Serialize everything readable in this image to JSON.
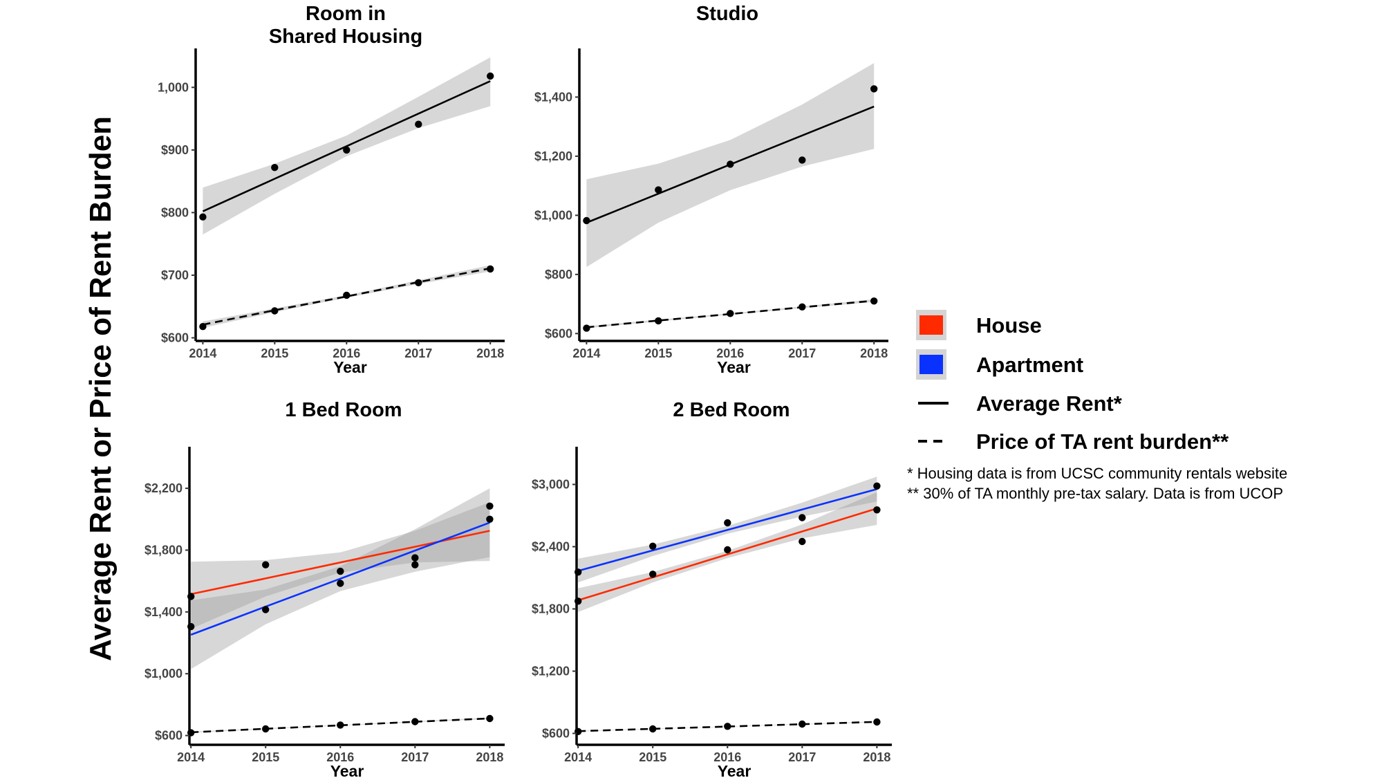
{
  "y_axis_label": "Average Rent or Price of Rent Burden",
  "x_axis_label": "Year",
  "legend": {
    "items": [
      {
        "label": "House",
        "kind": "fill",
        "color": "#ff2a00"
      },
      {
        "label": "Apartment",
        "kind": "fill",
        "color": "#0a32ff"
      },
      {
        "label": "Average Rent*",
        "kind": "solid",
        "color": "#000000"
      },
      {
        "label": "Price of TA rent burden**",
        "kind": "dashed",
        "color": "#000000"
      }
    ],
    "notes": [
      "* Housing data is from UCSC community rentals website",
      "** 30% of TA monthly pre-tax salary. Data is from UCOP"
    ]
  },
  "chart_data": [
    {
      "type": "scatter",
      "title": [
        "Room in",
        "Shared Housing"
      ],
      "xlabel": "Year",
      "x": [
        2014,
        2015,
        2016,
        2017,
        2018
      ],
      "xlim": [
        2013.9,
        2018.2
      ],
      "ylim": [
        595,
        1060
      ],
      "yticks": [
        600,
        700,
        800,
        900,
        1000
      ],
      "ytick_labels": [
        "$600",
        "$700",
        "$800",
        "$900",
        "1,000"
      ],
      "series": [
        {
          "type": "Average Rent",
          "color": "#000000",
          "dashed": false,
          "values": [
            793,
            872,
            900,
            941,
            1018
          ],
          "fit": [
            802,
            854,
            906,
            958,
            1010
          ],
          "ci_lo": [
            765,
            830,
            890,
            935,
            970
          ],
          "ci_hi": [
            840,
            878,
            923,
            985,
            1048
          ]
        },
        {
          "type": "Price of TA rent burden",
          "color": "#000000",
          "dashed": true,
          "values": [
            618,
            643,
            668,
            688,
            710
          ],
          "fit": [
            621,
            644,
            666,
            689,
            711
          ],
          "ci_lo": [
            616,
            641,
            664,
            686,
            706
          ],
          "ci_hi": [
            626,
            647,
            668,
            692,
            716
          ]
        }
      ]
    },
    {
      "type": "scatter",
      "title": [
        "Studio"
      ],
      "xlabel": "Year",
      "x": [
        2014,
        2015,
        2016,
        2017,
        2018
      ],
      "xlim": [
        2013.9,
        2018.2
      ],
      "ylim": [
        575,
        1560
      ],
      "yticks": [
        600,
        800,
        1000,
        1200,
        1400
      ],
      "ytick_labels": [
        "$600",
        "$800",
        "$1,000",
        "$1,200",
        "$1,400"
      ],
      "series": [
        {
          "type": "Average Rent",
          "color": "#000000",
          "dashed": false,
          "values": [
            982,
            1086,
            1173,
            1187,
            1428
          ],
          "fit": [
            975,
            1073,
            1172,
            1270,
            1368
          ],
          "ci_lo": [
            825,
            975,
            1085,
            1165,
            1225
          ],
          "ci_hi": [
            1122,
            1175,
            1255,
            1375,
            1515
          ]
        },
        {
          "type": "Price of TA rent burden",
          "color": "#000000",
          "dashed": true,
          "values": [
            618,
            643,
            668,
            690,
            710
          ],
          "fit": [
            621,
            644,
            666,
            689,
            711
          ],
          "ci_lo": [
            618,
            641,
            664,
            686,
            707
          ],
          "ci_hi": [
            625,
            647,
            668,
            692,
            716
          ]
        }
      ]
    },
    {
      "type": "scatter",
      "title": [
        "1 Bed Room"
      ],
      "xlabel": "Year",
      "x": [
        2014,
        2015,
        2016,
        2017,
        2018
      ],
      "xlim": [
        2013.98,
        2018.2
      ],
      "ylim": [
        540,
        2460
      ],
      "yticks": [
        600,
        1000,
        1400,
        1800,
        2200
      ],
      "ytick_labels": [
        "$600",
        "$1,000",
        "$1,400",
        "$1,800",
        "$2,200"
      ],
      "series": [
        {
          "type": "House",
          "color": "#ff2a00",
          "dashed": false,
          "values": [
            1500,
            1705,
            1663,
            1750,
            2085
          ],
          "fit": [
            1515,
            1617,
            1720,
            1822,
            1925
          ],
          "ci_lo": [
            1290,
            1500,
            1655,
            1720,
            1730
          ],
          "ci_hi": [
            1725,
            1735,
            1785,
            1925,
            2110
          ]
        },
        {
          "type": "Apartment",
          "color": "#0a32ff",
          "dashed": false,
          "values": [
            1305,
            1415,
            1585,
            1705,
            2000
          ],
          "fit": [
            1252,
            1434,
            1615,
            1797,
            1978
          ],
          "ci_lo": [
            1030,
            1320,
            1535,
            1660,
            1755
          ],
          "ci_hi": [
            1475,
            1545,
            1695,
            1935,
            2200
          ]
        },
        {
          "type": "Price of TA rent burden",
          "color": "#000000",
          "dashed": true,
          "values": [
            618,
            643,
            668,
            690,
            710
          ],
          "fit": [
            621,
            644,
            666,
            689,
            711
          ],
          "ci_lo": [
            618,
            641,
            664,
            686,
            707
          ],
          "ci_hi": [
            625,
            647,
            668,
            692,
            716
          ]
        }
      ]
    },
    {
      "type": "scatter",
      "title": [
        "2 Bed Room"
      ],
      "xlabel": "Year",
      "x": [
        2014,
        2015,
        2016,
        2017,
        2018
      ],
      "xlim": [
        2013.98,
        2018.2
      ],
      "ylim": [
        490,
        3350
      ],
      "yticks": [
        600,
        1200,
        1800,
        2400,
        3000
      ],
      "ytick_labels": [
        "$600",
        "$1,200",
        "$1,800",
        "$2,400",
        "$3,000"
      ],
      "series": [
        {
          "type": "House",
          "color": "#ff2a00",
          "dashed": false,
          "values": [
            1875,
            2135,
            2370,
            2450,
            2755
          ],
          "fit": [
            1883,
            2104,
            2326,
            2547,
            2768
          ],
          "ci_lo": [
            1770,
            2055,
            2290,
            2480,
            2610
          ],
          "ci_hi": [
            2000,
            2155,
            2360,
            2615,
            2925
          ]
        },
        {
          "type": "Apartment",
          "color": "#0a32ff",
          "dashed": false,
          "values": [
            2155,
            2405,
            2630,
            2680,
            2985
          ],
          "fit": [
            2167,
            2364,
            2561,
            2758,
            2955
          ],
          "ci_lo": [
            2055,
            2310,
            2525,
            2690,
            2835
          ],
          "ci_hi": [
            2285,
            2420,
            2600,
            2825,
            3075
          ]
        },
        {
          "type": "Price of TA rent burden",
          "color": "#000000",
          "dashed": true,
          "values": [
            618,
            643,
            668,
            690,
            710
          ],
          "fit": [
            621,
            644,
            666,
            689,
            711
          ],
          "ci_lo": [
            618,
            641,
            664,
            686,
            707
          ],
          "ci_hi": [
            625,
            647,
            668,
            692,
            716
          ]
        }
      ]
    }
  ]
}
